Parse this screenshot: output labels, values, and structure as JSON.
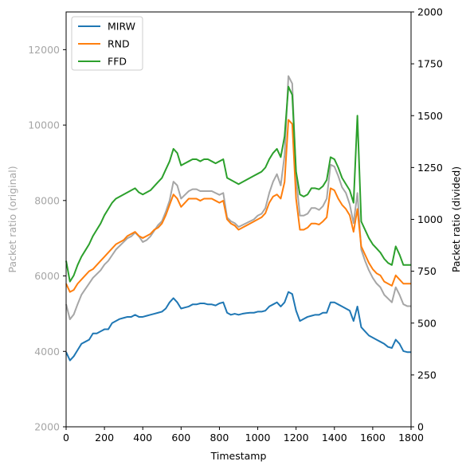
{
  "chart_data": {
    "type": "line",
    "xlabel": "Timestamp",
    "ylabel_left": "Packet ratio (original)",
    "ylabel_right": "Packet ratio (divided)",
    "xlim": [
      0,
      1800
    ],
    "ylim_left": [
      2000,
      13000
    ],
    "ylim_right": [
      0,
      2000
    ],
    "x_ticks": [
      0,
      200,
      400,
      600,
      800,
      1000,
      1200,
      1400,
      1600,
      1800
    ],
    "y_ticks_left": [
      2000,
      4000,
      6000,
      8000,
      10000,
      12000
    ],
    "y_ticks_right": [
      0,
      250,
      500,
      750,
      1000,
      1250,
      1500,
      1750,
      2000
    ],
    "grid": false,
    "legend_position": "top-left",
    "colors": {
      "MIRW": "#1f77b4",
      "RND": "#ff7f0e",
      "FFD": "#2ca02c",
      "original": "#a6a6a6"
    },
    "x": [
      0,
      20,
      40,
      60,
      80,
      100,
      120,
      140,
      160,
      180,
      200,
      220,
      240,
      260,
      280,
      300,
      320,
      340,
      360,
      380,
      400,
      420,
      440,
      460,
      480,
      500,
      520,
      540,
      560,
      580,
      600,
      620,
      640,
      660,
      680,
      700,
      720,
      740,
      760,
      780,
      800,
      820,
      840,
      860,
      880,
      900,
      920,
      940,
      960,
      980,
      1000,
      1020,
      1040,
      1060,
      1080,
      1100,
      1120,
      1140,
      1160,
      1180,
      1200,
      1220,
      1240,
      1260,
      1280,
      1300,
      1320,
      1340,
      1360,
      1380,
      1400,
      1420,
      1440,
      1460,
      1480,
      1500,
      1520,
      1540,
      1560,
      1580,
      1600,
      1620,
      1640,
      1660,
      1680,
      1700,
      1720,
      1740,
      1760,
      1780,
      1800
    ],
    "series": [
      {
        "name": "MIRW",
        "axis": "right",
        "values": [
          360,
          320,
          340,
          370,
          400,
          410,
          420,
          450,
          450,
          460,
          470,
          470,
          500,
          510,
          520,
          525,
          530,
          530,
          540,
          530,
          530,
          535,
          540,
          545,
          550,
          555,
          570,
          600,
          620,
          600,
          570,
          575,
          580,
          590,
          590,
          595,
          595,
          590,
          590,
          585,
          595,
          600,
          550,
          540,
          545,
          540,
          545,
          548,
          550,
          550,
          555,
          555,
          560,
          580,
          590,
          600,
          580,
          600,
          650,
          640,
          560,
          510,
          520,
          530,
          535,
          540,
          540,
          550,
          550,
          600,
          600,
          590,
          580,
          570,
          560,
          510,
          580,
          480,
          460,
          440,
          430,
          420,
          410,
          400,
          385,
          380,
          420,
          400,
          365,
          360,
          360
        ]
      },
      {
        "name": "RND",
        "axis": "right",
        "values": [
          690,
          650,
          660,
          690,
          710,
          730,
          750,
          760,
          780,
          800,
          820,
          840,
          860,
          880,
          890,
          900,
          920,
          930,
          940,
          920,
          910,
          920,
          930,
          950,
          960,
          980,
          1020,
          1070,
          1120,
          1100,
          1060,
          1080,
          1100,
          1100,
          1100,
          1090,
          1100,
          1100,
          1100,
          1090,
          1080,
          1090,
          1000,
          980,
          970,
          950,
          960,
          970,
          980,
          990,
          1000,
          1010,
          1030,
          1080,
          1110,
          1120,
          1100,
          1180,
          1480,
          1460,
          1100,
          950,
          950,
          960,
          980,
          980,
          975,
          990,
          1010,
          1150,
          1140,
          1100,
          1070,
          1050,
          1020,
          940,
          1050,
          870,
          830,
          790,
          760,
          740,
          730,
          700,
          690,
          680,
          730,
          710,
          690,
          690,
          690
        ]
      },
      {
        "name": "FFD",
        "axis": "right",
        "values": [
          800,
          700,
          730,
          780,
          820,
          850,
          880,
          920,
          950,
          980,
          1020,
          1050,
          1080,
          1100,
          1110,
          1120,
          1130,
          1140,
          1150,
          1130,
          1120,
          1130,
          1140,
          1160,
          1180,
          1200,
          1240,
          1280,
          1340,
          1320,
          1260,
          1270,
          1280,
          1290,
          1290,
          1280,
          1290,
          1290,
          1280,
          1270,
          1280,
          1290,
          1200,
          1190,
          1180,
          1170,
          1180,
          1190,
          1200,
          1210,
          1220,
          1230,
          1250,
          1290,
          1320,
          1340,
          1300,
          1400,
          1640,
          1600,
          1230,
          1120,
          1110,
          1120,
          1150,
          1150,
          1145,
          1160,
          1190,
          1300,
          1290,
          1250,
          1200,
          1170,
          1140,
          1080,
          1500,
          990,
          950,
          910,
          880,
          860,
          840,
          810,
          790,
          780,
          870,
          830,
          780,
          780,
          780
        ]
      },
      {
        "name": "",
        "axis": "left",
        "values": [
          5250,
          4850,
          4980,
          5250,
          5500,
          5650,
          5800,
          5950,
          6050,
          6150,
          6300,
          6400,
          6550,
          6700,
          6800,
          6900,
          7000,
          7050,
          7150,
          7050,
          6900,
          6950,
          7050,
          7200,
          7350,
          7450,
          7700,
          8000,
          8500,
          8400,
          8050,
          8150,
          8250,
          8300,
          8300,
          8250,
          8250,
          8250,
          8250,
          8200,
          8150,
          8200,
          7550,
          7450,
          7400,
          7300,
          7350,
          7400,
          7450,
          7500,
          7600,
          7650,
          7800,
          8200,
          8500,
          8700,
          8400,
          9200,
          11300,
          11100,
          8600,
          7600,
          7600,
          7650,
          7800,
          7800,
          7750,
          7850,
          8050,
          8950,
          8900,
          8650,
          8350,
          8200,
          7900,
          7400,
          8200,
          6700,
          6400,
          6150,
          5950,
          5800,
          5700,
          5500,
          5400,
          5300,
          5700,
          5500,
          5250,
          5200,
          5200
        ]
      }
    ]
  }
}
